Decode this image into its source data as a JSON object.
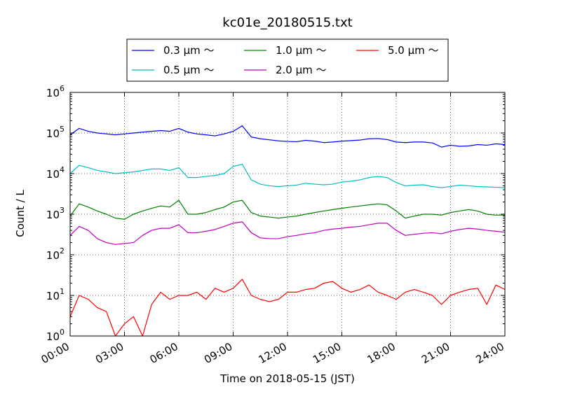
{
  "chart_data": {
    "type": "line",
    "title": "kc01e_20180515.txt",
    "xlabel": "Time on 2018-05-15 (JST)",
    "ylabel": "Count / L",
    "yscale": "log",
    "ylim": [
      1,
      1000000
    ],
    "xlim": [
      "00:00",
      "24:00"
    ],
    "x_ticks": [
      "00:00",
      "03:00",
      "06:00",
      "09:00",
      "12:00",
      "15:00",
      "18:00",
      "21:00",
      "24:00"
    ],
    "y_ticks": [
      {
        "base": "10",
        "exp": "0"
      },
      {
        "base": "10",
        "exp": "1"
      },
      {
        "base": "10",
        "exp": "2"
      },
      {
        "base": "10",
        "exp": "3"
      },
      {
        "base": "10",
        "exp": "4"
      },
      {
        "base": "10",
        "exp": "5"
      },
      {
        "base": "10",
        "exp": "6"
      }
    ],
    "grid": true,
    "legend_position": "top-center",
    "series": [
      {
        "name": "0.3 μm ～",
        "color": "#0000ff",
        "x": [
          "00:00",
          "00:30",
          "01:00",
          "01:30",
          "02:00",
          "02:30",
          "03:00",
          "03:30",
          "04:00",
          "04:30",
          "05:00",
          "05:30",
          "06:00",
          "06:30",
          "07:00",
          "07:30",
          "08:00",
          "08:30",
          "09:00",
          "09:30",
          "10:00",
          "10:30",
          "11:00",
          "11:30",
          "12:00",
          "12:30",
          "13:00",
          "13:30",
          "14:00",
          "14:30",
          "15:00",
          "15:30",
          "16:00",
          "16:30",
          "17:00",
          "17:30",
          "18:00",
          "18:30",
          "19:00",
          "19:30",
          "20:00",
          "20:30",
          "21:00",
          "21:30",
          "22:00",
          "22:30",
          "23:00",
          "23:30",
          "24:00"
        ],
        "y": [
          90000,
          130000,
          110000,
          100000,
          95000,
          90000,
          95000,
          100000,
          105000,
          110000,
          115000,
          110000,
          130000,
          105000,
          95000,
          90000,
          85000,
          95000,
          110000,
          150000,
          80000,
          72000,
          68000,
          64000,
          62000,
          61000,
          66000,
          63000,
          58000,
          60000,
          63000,
          65000,
          67000,
          72000,
          73000,
          69000,
          60000,
          58000,
          60000,
          60000,
          57000,
          45000,
          50000,
          47000,
          48000,
          52000,
          50000,
          54000,
          52000
        ]
      },
      {
        "name": "0.5 μm ～",
        "color": "#00bfbf",
        "x": [
          "00:00",
          "00:30",
          "01:00",
          "01:30",
          "02:00",
          "02:30",
          "03:00",
          "03:30",
          "04:00",
          "04:30",
          "05:00",
          "05:30",
          "06:00",
          "06:30",
          "07:00",
          "07:30",
          "08:00",
          "08:30",
          "09:00",
          "09:30",
          "10:00",
          "10:30",
          "11:00",
          "11:30",
          "12:00",
          "12:30",
          "13:00",
          "13:30",
          "14:00",
          "14:30",
          "15:00",
          "15:30",
          "16:00",
          "16:30",
          "17:00",
          "17:30",
          "18:00",
          "18:30",
          "19:00",
          "19:30",
          "20:00",
          "20:30",
          "21:00",
          "21:30",
          "22:00",
          "22:30",
          "23:00",
          "23:30",
          "24:00"
        ],
        "y": [
          10000,
          16000,
          14000,
          12000,
          11000,
          10000,
          10500,
          11000,
          12000,
          13000,
          13000,
          12000,
          14000,
          8000,
          8000,
          8500,
          9000,
          10000,
          15000,
          17000,
          7000,
          5500,
          5000,
          4800,
          5000,
          5200,
          5800,
          5500,
          5300,
          5500,
          6200,
          6500,
          7000,
          8000,
          8500,
          8000,
          6000,
          5000,
          5200,
          5300,
          4800,
          4500,
          4800,
          5200,
          5000,
          4800,
          4700,
          4600,
          4500
        ]
      },
      {
        "name": "1.0 μm ～",
        "color": "#008000",
        "x": [
          "00:00",
          "00:30",
          "01:00",
          "01:30",
          "02:00",
          "02:30",
          "03:00",
          "03:30",
          "04:00",
          "04:30",
          "05:00",
          "05:30",
          "06:00",
          "06:30",
          "07:00",
          "07:30",
          "08:00",
          "08:30",
          "09:00",
          "09:30",
          "10:00",
          "10:30",
          "11:00",
          "11:30",
          "12:00",
          "12:30",
          "13:00",
          "13:30",
          "14:00",
          "14:30",
          "15:00",
          "15:30",
          "16:00",
          "16:30",
          "17:00",
          "17:30",
          "18:00",
          "18:30",
          "19:00",
          "19:30",
          "20:00",
          "20:30",
          "21:00",
          "21:30",
          "22:00",
          "22:30",
          "23:00",
          "23:30",
          "24:00"
        ],
        "y": [
          900,
          1800,
          1500,
          1200,
          1000,
          800,
          750,
          1000,
          1200,
          1400,
          1600,
          1500,
          2200,
          1000,
          1000,
          1100,
          1300,
          1500,
          2000,
          2200,
          1100,
          900,
          850,
          800,
          850,
          900,
          1000,
          1100,
          1200,
          1300,
          1400,
          1500,
          1600,
          1700,
          1800,
          1700,
          1200,
          800,
          900,
          1000,
          1000,
          950,
          1100,
          1200,
          1300,
          1200,
          1000,
          950,
          950
        ]
      },
      {
        "name": "2.0 μm ～",
        "color": "#bf00bf",
        "x": [
          "00:00",
          "00:30",
          "01:00",
          "01:30",
          "02:00",
          "02:30",
          "03:00",
          "03:30",
          "04:00",
          "04:30",
          "05:00",
          "05:30",
          "06:00",
          "06:30",
          "07:00",
          "07:30",
          "08:00",
          "08:30",
          "09:00",
          "09:30",
          "10:00",
          "10:30",
          "11:00",
          "11:30",
          "12:00",
          "12:30",
          "13:00",
          "13:30",
          "14:00",
          "14:30",
          "15:00",
          "15:30",
          "16:00",
          "16:30",
          "17:00",
          "17:30",
          "18:00",
          "18:30",
          "19:00",
          "19:30",
          "20:00",
          "20:30",
          "21:00",
          "21:30",
          "22:00",
          "22:30",
          "23:00",
          "23:30",
          "24:00"
        ],
        "y": [
          300,
          500,
          400,
          250,
          200,
          180,
          190,
          200,
          300,
          400,
          450,
          450,
          550,
          350,
          350,
          380,
          420,
          500,
          600,
          650,
          350,
          260,
          250,
          250,
          280,
          300,
          330,
          350,
          400,
          430,
          450,
          480,
          500,
          550,
          600,
          600,
          400,
          300,
          320,
          340,
          350,
          330,
          380,
          420,
          450,
          430,
          400,
          380,
          360
        ]
      },
      {
        "name": "5.0 μm ～",
        "color": "#ff0000",
        "x": [
          "00:00",
          "00:30",
          "01:00",
          "01:30",
          "02:00",
          "02:30",
          "03:00",
          "03:30",
          "04:00",
          "04:30",
          "05:00",
          "05:30",
          "06:00",
          "06:30",
          "07:00",
          "07:30",
          "08:00",
          "08:30",
          "09:00",
          "09:30",
          "10:00",
          "10:30",
          "11:00",
          "11:30",
          "12:00",
          "12:30",
          "13:00",
          "13:30",
          "14:00",
          "14:30",
          "15:00",
          "15:30",
          "16:00",
          "16:30",
          "17:00",
          "17:30",
          "18:00",
          "18:30",
          "19:00",
          "19:30",
          "20:00",
          "20:30",
          "21:00",
          "21:30",
          "22:00",
          "22:30",
          "23:00",
          "23:30",
          "24:00"
        ],
        "y": [
          3,
          10,
          8,
          5,
          4,
          1,
          2,
          3,
          1,
          6,
          12,
          8,
          10,
          10,
          12,
          8,
          15,
          12,
          15,
          25,
          10,
          8,
          7,
          8,
          12,
          12,
          14,
          15,
          20,
          22,
          15,
          12,
          14,
          18,
          12,
          10,
          8,
          12,
          14,
          12,
          10,
          6,
          10,
          12,
          14,
          15,
          6,
          18,
          14
        ]
      }
    ]
  }
}
